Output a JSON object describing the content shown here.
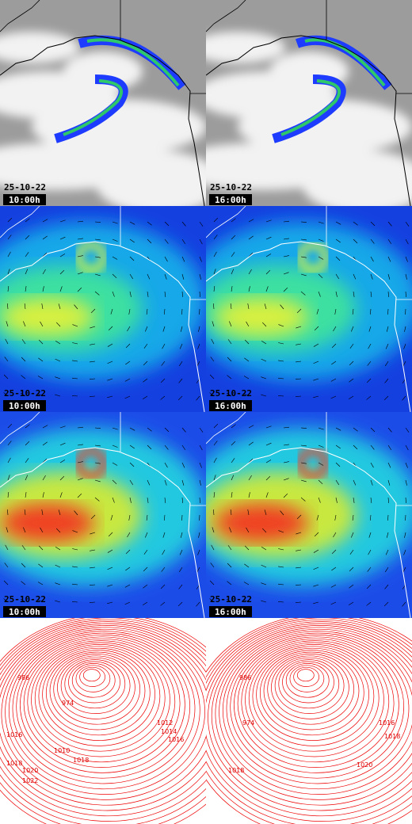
{
  "panels": [
    {
      "date": "25-10-22",
      "time": "10:00h"
    },
    {
      "date": "25-10-22",
      "time": "16:00h"
    },
    {
      "date": "25-10-22",
      "time": "10:00h"
    },
    {
      "date": "25-10-22",
      "time": "16:00h"
    },
    {
      "date": "25-10-22",
      "time": "10:00h"
    },
    {
      "date": "25-10-22",
      "time": "16:00h"
    }
  ],
  "isobar_labels": {
    "left": [
      "986",
      "974",
      "1016",
      "1010",
      "1018",
      "1012",
      "1014",
      "1016",
      "1018",
      "1020",
      "1022"
    ],
    "right": [
      "986",
      "974",
      "1016",
      "1018",
      "1018",
      "1020"
    ]
  }
}
